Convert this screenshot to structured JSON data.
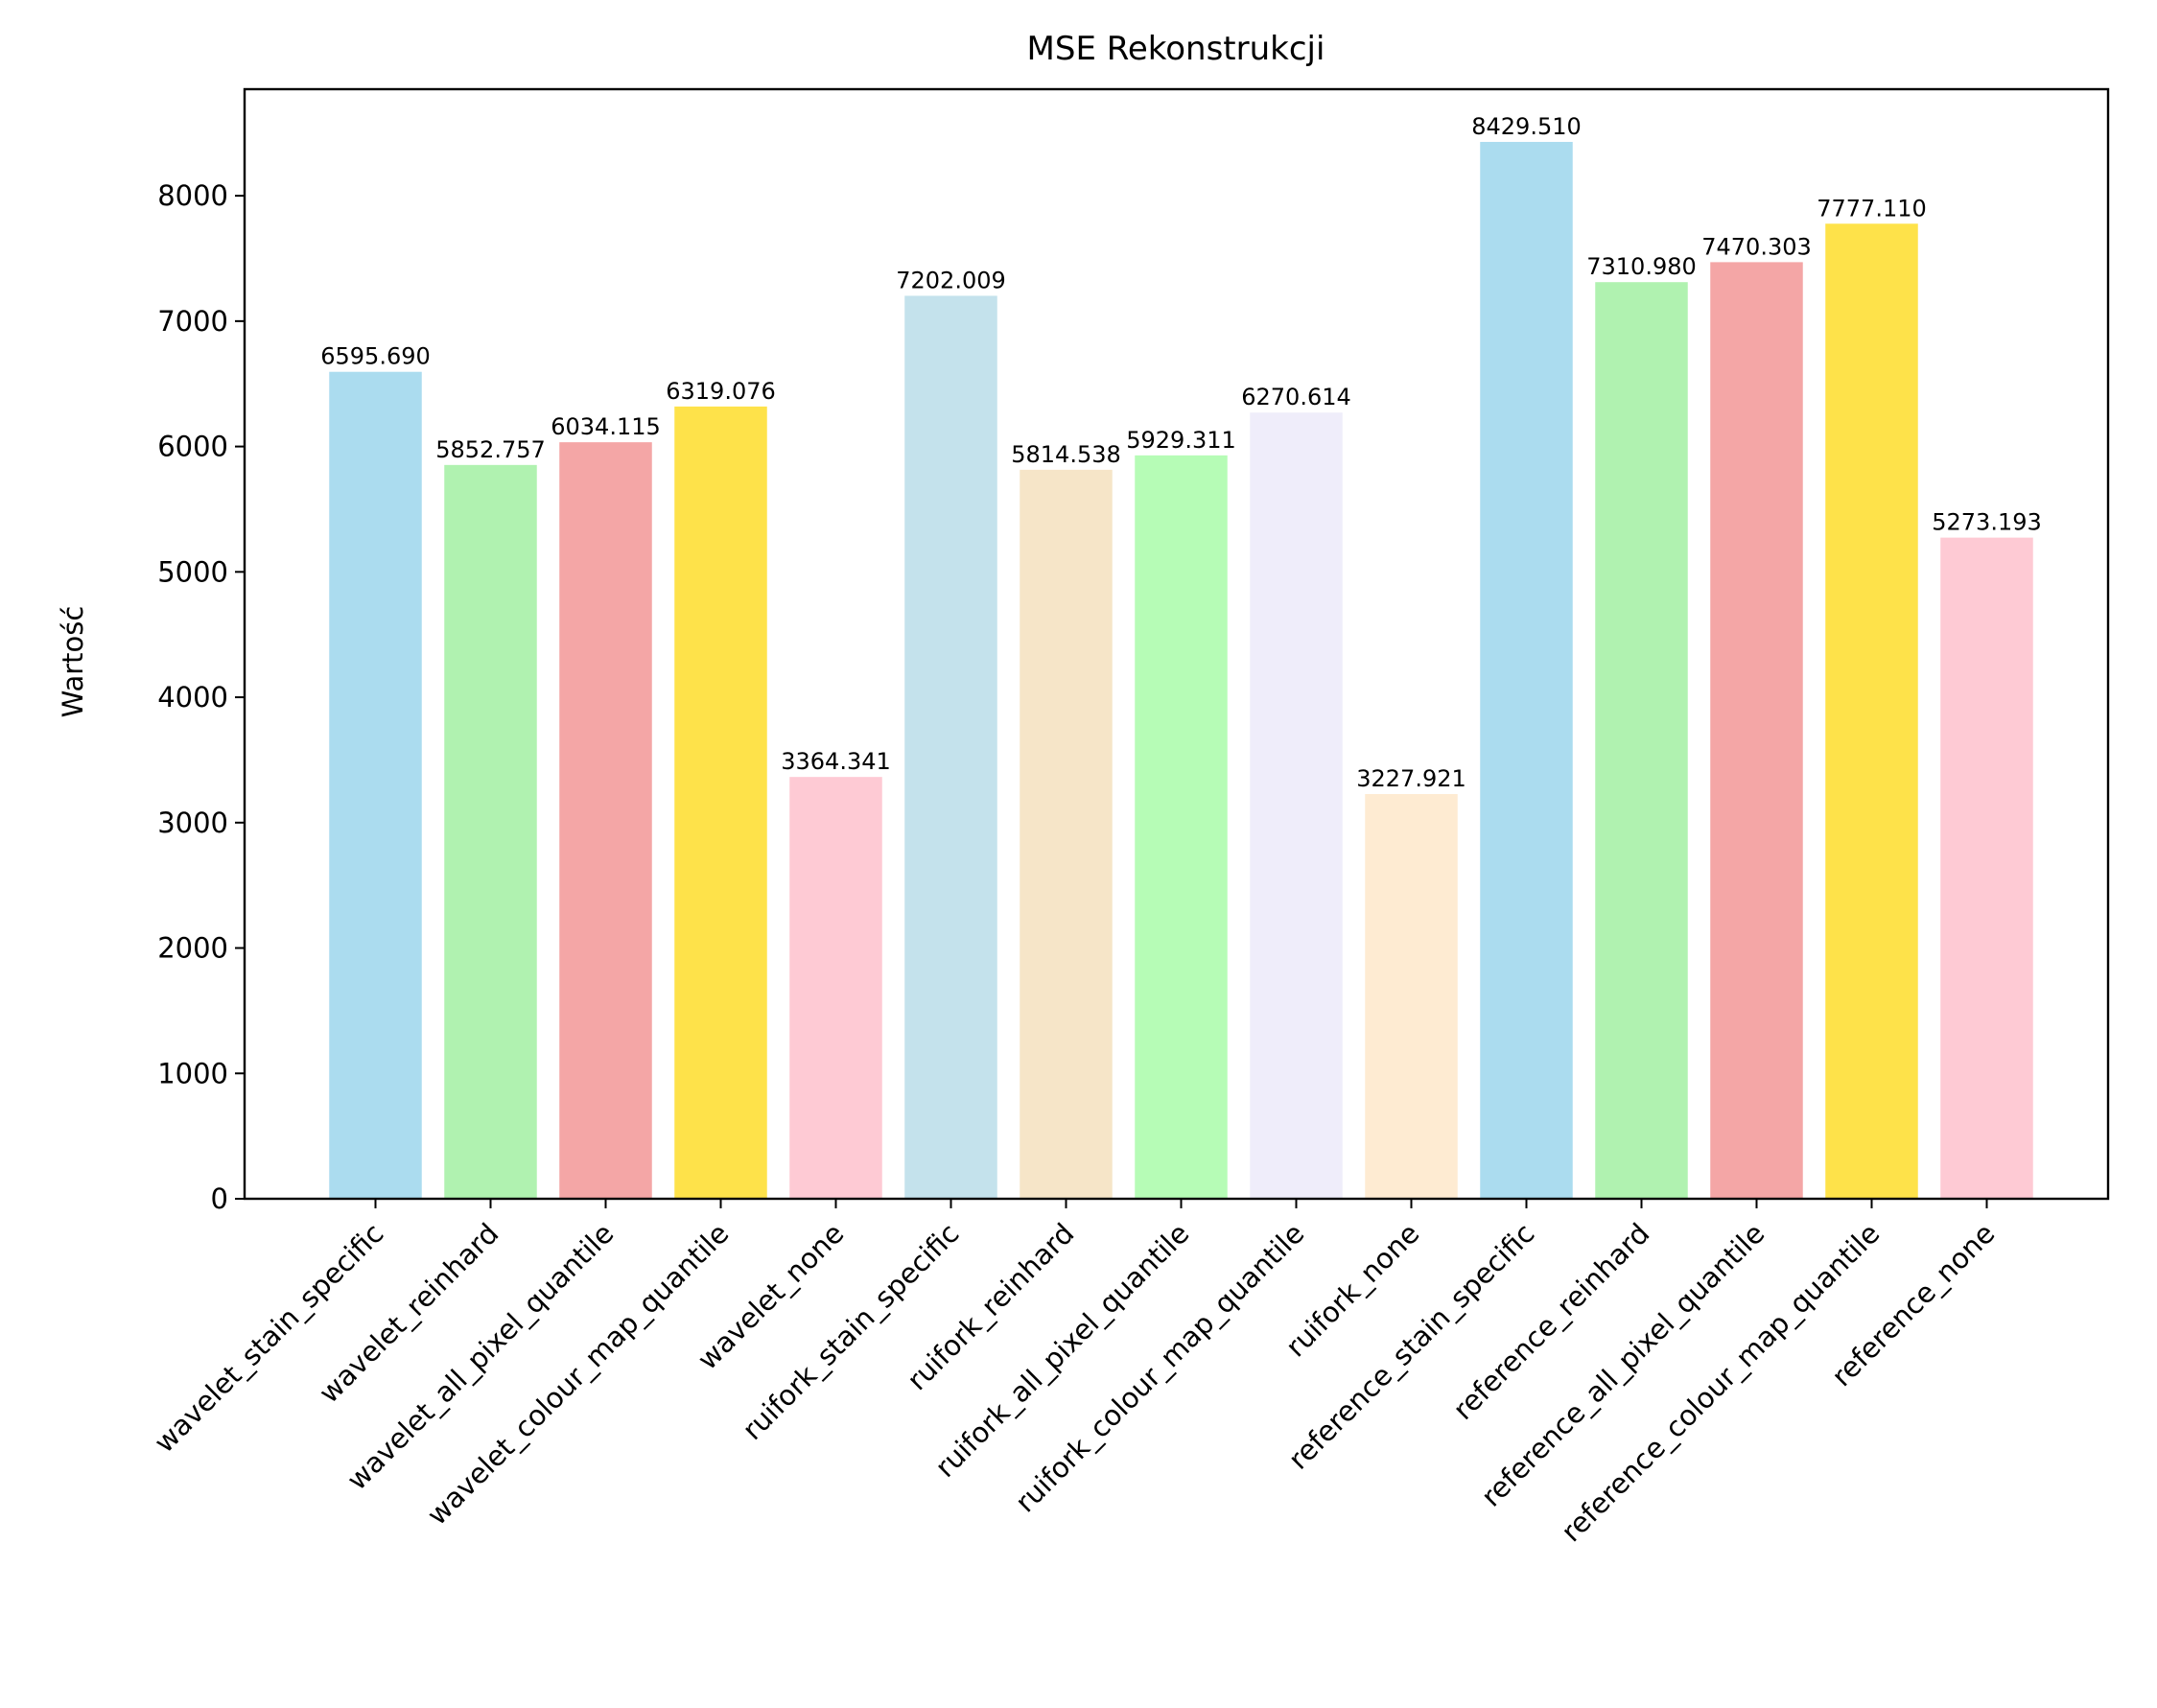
{
  "chart_data": {
    "type": "bar",
    "title": "MSE Rekonstrukcji",
    "xlabel": "",
    "ylabel": "Wartość",
    "ylim": [
      0,
      8850
    ],
    "yticks": [
      0,
      1000,
      2000,
      3000,
      4000,
      5000,
      6000,
      7000,
      8000
    ],
    "grid": false,
    "categories": [
      "wavelet_stain_specific",
      "wavelet_reinhard",
      "wavelet_all_pixel_quantile",
      "wavelet_colour_map_quantile",
      "wavelet_none",
      "ruifork_stain_specific",
      "ruifork_reinhard",
      "ruifork_all_pixel_quantile",
      "ruifork_colour_map_quantile",
      "ruifork_none",
      "reference_stain_specific",
      "reference_reinhard",
      "reference_all_pixel_quantile",
      "reference_colour_map_quantile",
      "reference_none"
    ],
    "values": [
      6595.69,
      5852.757,
      6034.115,
      6319.076,
      3364.341,
      7202.009,
      5814.538,
      5929.311,
      6270.614,
      3227.921,
      8429.51,
      7310.98,
      7470.303,
      7777.11,
      5273.193
    ],
    "data_labels": [
      "6595.690",
      "5852.757",
      "6034.115",
      "6319.076",
      "3364.341",
      "7202.009",
      "5814.538",
      "5929.311",
      "6270.614",
      "3227.921",
      "8429.510",
      "7310.980",
      "7470.303",
      "7777.110",
      "5273.193"
    ],
    "colors": [
      "#abdcef",
      "#b0f2b0",
      "#f4a6a6",
      "#fee24a",
      "#fecad4",
      "#c4e2ec",
      "#f6e5c8",
      "#b6fcb6",
      "#efedfa",
      "#feebd2",
      "#abdcef",
      "#b0f2b0",
      "#f4a6a6",
      "#fee24a",
      "#fecad4"
    ]
  }
}
